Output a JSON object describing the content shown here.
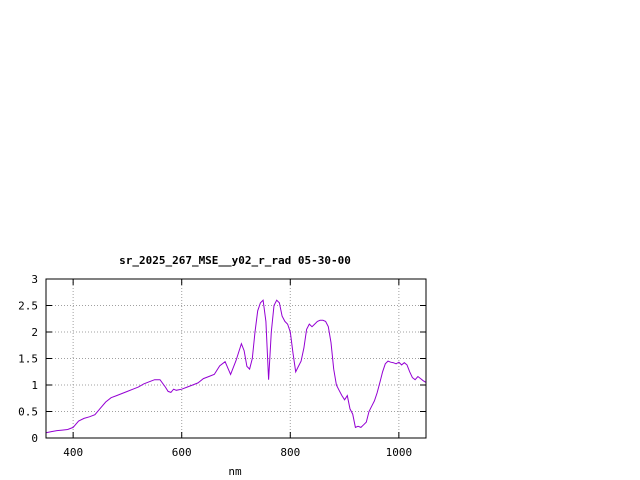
{
  "chart_data": {
    "type": "line",
    "title": "sr_2025_267_MSE__y02_r_rad 05-30-00",
    "xlabel": "nm",
    "ylabel": "",
    "xlim": [
      350,
      1050
    ],
    "ylim": [
      0,
      3
    ],
    "x_ticks": [
      "400",
      "600",
      "800",
      "1000"
    ],
    "x_tick_values": [
      400,
      600,
      800,
      1000
    ],
    "y_ticks": [
      "0",
      "0.5",
      "1",
      "1.5",
      "2",
      "2.5",
      "3"
    ],
    "y_tick_values": [
      0,
      0.5,
      1,
      1.5,
      2,
      2.5,
      3
    ],
    "grid": true,
    "series": [
      {
        "color": "#9400d3",
        "x": [
          350,
          360,
          370,
          380,
          390,
          400,
          410,
          420,
          430,
          440,
          450,
          460,
          470,
          480,
          490,
          500,
          510,
          520,
          530,
          540,
          550,
          560,
          570,
          575,
          580,
          585,
          590,
          600,
          610,
          620,
          630,
          640,
          650,
          660,
          670,
          680,
          690,
          700,
          705,
          710,
          715,
          720,
          725,
          730,
          735,
          740,
          745,
          750,
          755,
          760,
          765,
          770,
          775,
          780,
          785,
          790,
          795,
          800,
          805,
          810,
          815,
          820,
          825,
          830,
          835,
          840,
          845,
          850,
          855,
          860,
          865,
          870,
          875,
          880,
          885,
          890,
          895,
          900,
          905,
          910,
          915,
          920,
          925,
          930,
          935,
          940,
          945,
          950,
          955,
          960,
          965,
          970,
          975,
          980,
          985,
          990,
          995,
          1000,
          1005,
          1010,
          1015,
          1020,
          1025,
          1030,
          1035,
          1040,
          1045,
          1050
        ],
        "y": [
          0.1,
          0.12,
          0.14,
          0.15,
          0.16,
          0.2,
          0.32,
          0.37,
          0.4,
          0.44,
          0.56,
          0.68,
          0.76,
          0.8,
          0.84,
          0.88,
          0.92,
          0.96,
          1.02,
          1.06,
          1.1,
          1.1,
          0.96,
          0.88,
          0.86,
          0.92,
          0.9,
          0.92,
          0.96,
          1.0,
          1.04,
          1.12,
          1.16,
          1.2,
          1.36,
          1.44,
          1.2,
          1.46,
          1.62,
          1.78,
          1.65,
          1.35,
          1.3,
          1.5,
          2.0,
          2.4,
          2.55,
          2.6,
          2.2,
          1.1,
          2.0,
          2.5,
          2.6,
          2.55,
          2.3,
          2.2,
          2.15,
          2.0,
          1.6,
          1.25,
          1.35,
          1.45,
          1.7,
          2.05,
          2.15,
          2.1,
          2.15,
          2.2,
          2.22,
          2.22,
          2.2,
          2.1,
          1.8,
          1.3,
          1.0,
          0.9,
          0.8,
          0.72,
          0.8,
          0.55,
          0.45,
          0.2,
          0.22,
          0.2,
          0.25,
          0.3,
          0.5,
          0.6,
          0.7,
          0.85,
          1.05,
          1.25,
          1.4,
          1.45,
          1.43,
          1.42,
          1.4,
          1.43,
          1.38,
          1.42,
          1.38,
          1.25,
          1.14,
          1.1,
          1.16,
          1.12,
          1.08,
          1.05
        ]
      }
    ]
  }
}
